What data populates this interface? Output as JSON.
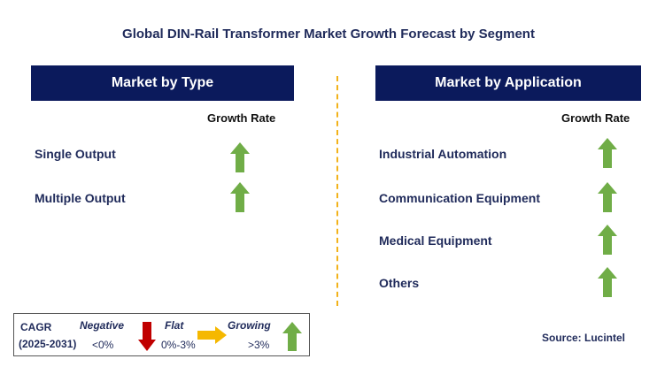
{
  "chart_data": {
    "type": "table",
    "title": "Global DIN-Rail Transformer Market Growth Forecast by Segment",
    "column_header": "Growth Rate",
    "panels": [
      {
        "header": "Market by Type",
        "segments": [
          {
            "label": "Single Output",
            "growth": "Growing"
          },
          {
            "label": "Multiple Output",
            "growth": "Growing"
          }
        ]
      },
      {
        "header": "Market by Application",
        "segments": [
          {
            "label": "Industrial Automation",
            "growth": "Growing"
          },
          {
            "label": "Communication Equipment",
            "growth": "Growing"
          },
          {
            "label": "Medical Equipment",
            "growth": "Growing"
          },
          {
            "label": "Others",
            "growth": "Growing"
          }
        ]
      }
    ],
    "legend": {
      "cagr_label": "CAGR",
      "period": "(2025-2031)",
      "items": [
        {
          "name": "Negative",
          "range": "<0%",
          "icon": "red-down-arrow-icon",
          "color": "#c00000"
        },
        {
          "name": "Flat",
          "range": "0%-3%",
          "icon": "yellow-right-arrow-icon",
          "color": "#f5b800"
        },
        {
          "name": "Growing",
          "range": ">3%",
          "icon": "green-up-arrow-icon",
          "color": "#70ad47"
        }
      ]
    },
    "source": "Source: Lucintel"
  }
}
